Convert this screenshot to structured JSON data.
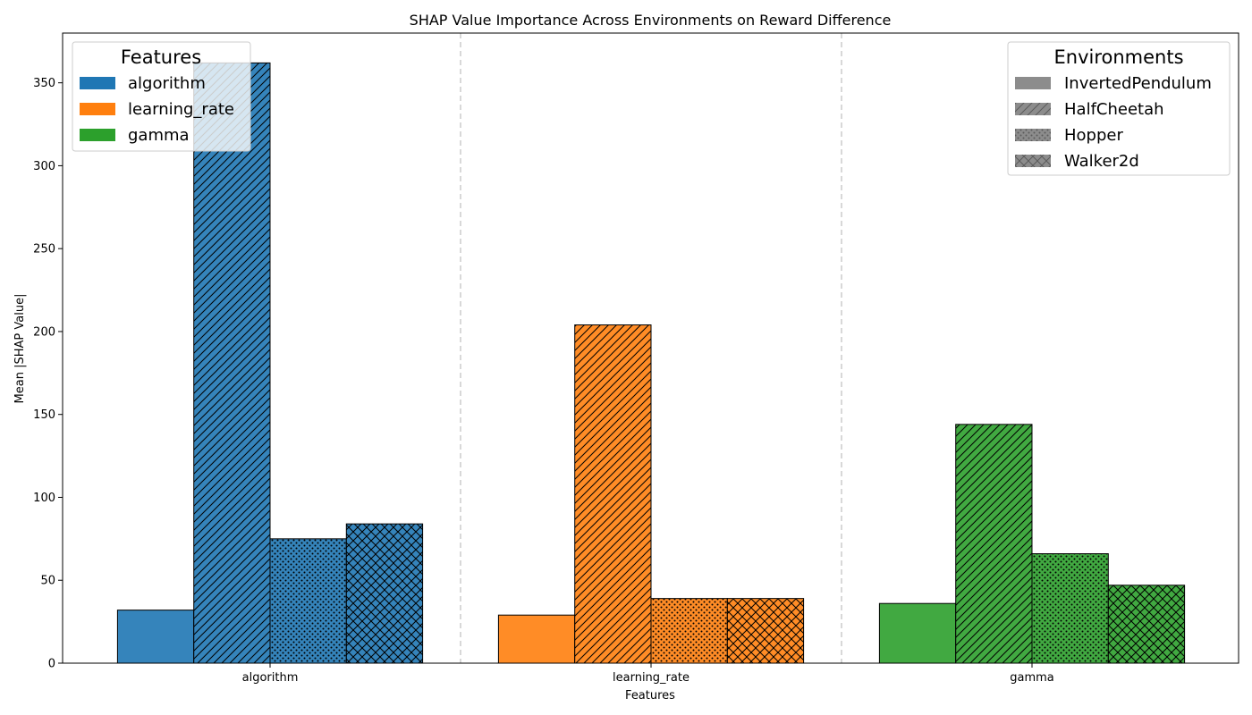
{
  "chart_data": {
    "type": "bar",
    "title": "SHAP Value Importance Across Environments on Reward Difference",
    "xlabel": "Features",
    "ylabel": "Mean |SHAP Value|",
    "categories": [
      "algorithm",
      "learning_rate",
      "gamma"
    ],
    "category_colors": [
      "#1f77b4",
      "#ff7f0e",
      "#2ca02c"
    ],
    "series": [
      {
        "name": "InvertedPendulum",
        "pattern": "solid",
        "values": [
          32,
          29,
          36
        ]
      },
      {
        "name": "HalfCheetah",
        "pattern": "diagonal",
        "values": [
          362,
          204,
          144
        ]
      },
      {
        "name": "Hopper",
        "pattern": "dots",
        "values": [
          75,
          39,
          66
        ]
      },
      {
        "name": "Walker2d",
        "pattern": "crosshatch",
        "values": [
          84,
          39,
          47
        ]
      }
    ],
    "ylim": [
      0,
      380
    ],
    "yticks": [
      0,
      50,
      100,
      150,
      200,
      250,
      300,
      350
    ],
    "grid": false,
    "separators": "dashed vertical lines between feature groups",
    "legends": {
      "features": {
        "title": "Features",
        "placement": "top-left",
        "items": [
          "algorithm",
          "learning_rate",
          "gamma"
        ]
      },
      "environments": {
        "title": "Environments",
        "placement": "top-right",
        "items": [
          "InvertedPendulum",
          "HalfCheetah",
          "Hopper",
          "Walker2d"
        ]
      }
    }
  }
}
